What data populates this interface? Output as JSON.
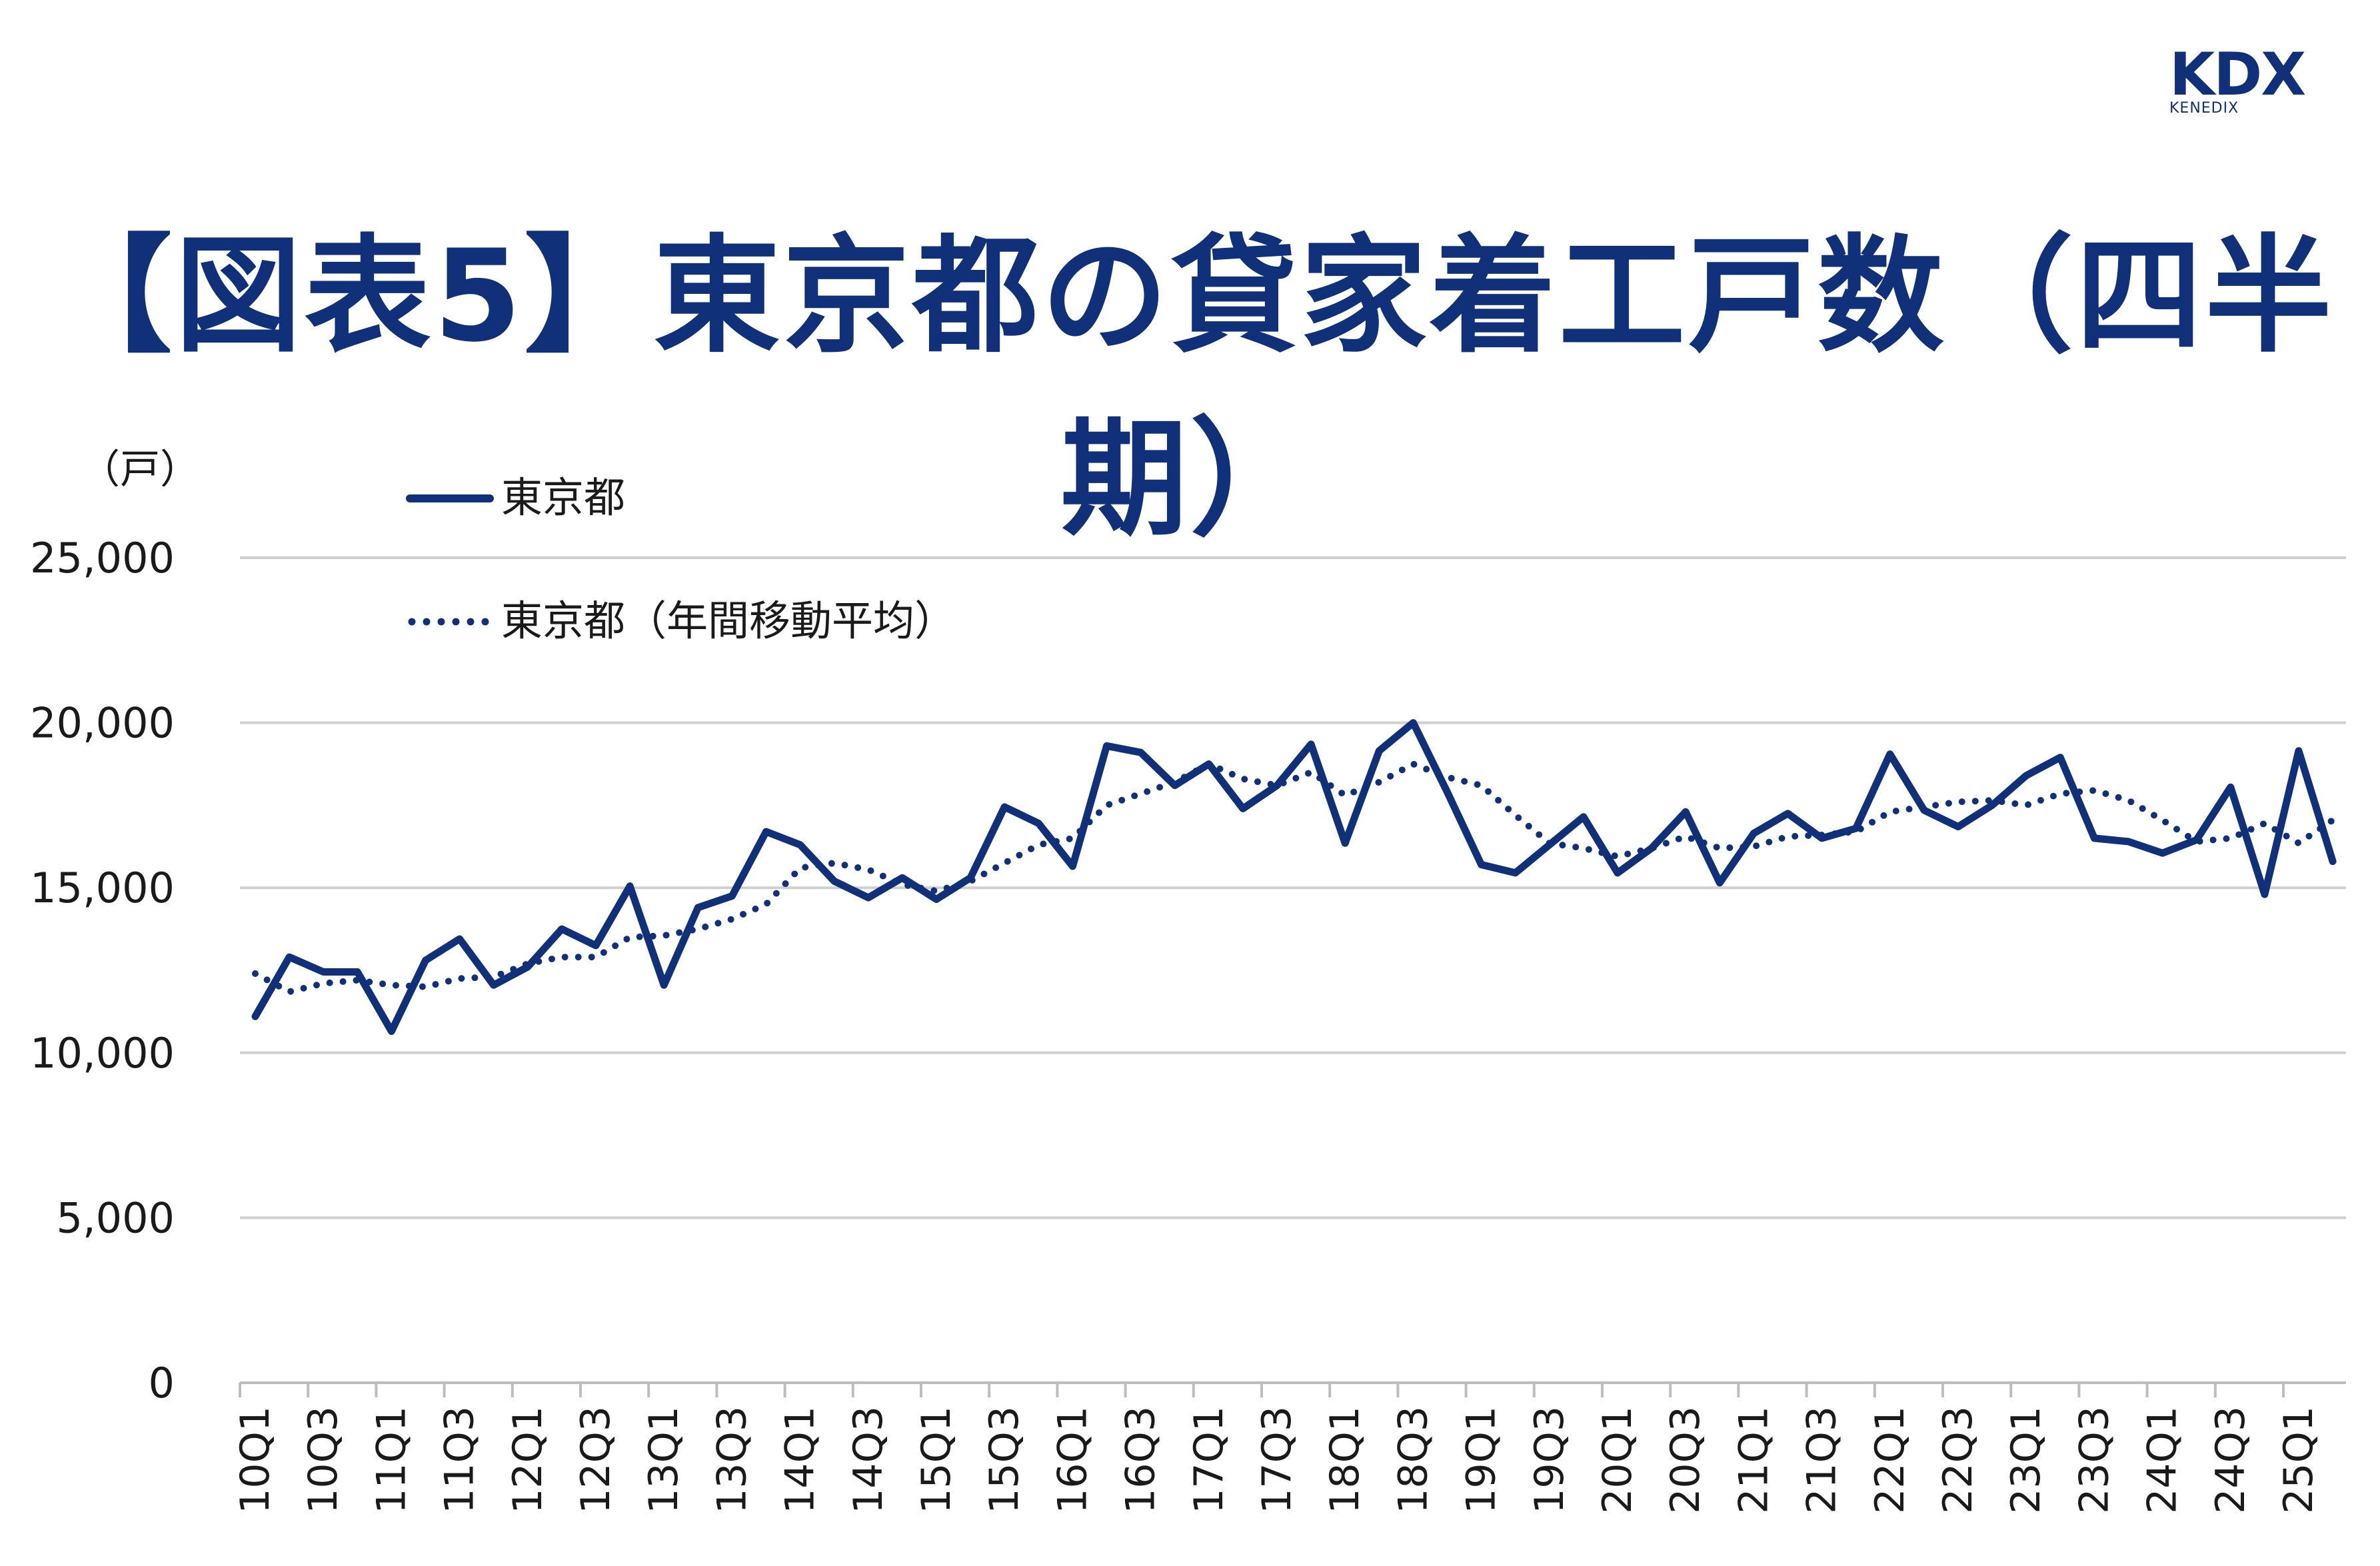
{
  "header": {
    "title": "【図表5】東京都の貸家着工戸数（四半期）",
    "logo_text": "KDX",
    "logo_subtext": "KENEDIX"
  },
  "colors": {
    "series": "#11307a",
    "grid": "#cfcfcf",
    "title": "#11307a"
  },
  "chart_data": {
    "type": "line",
    "title": "【図表5】東京都の貸家着工戸数（四半期）",
    "ylabel": "（戸）",
    "ylim": [
      0,
      25000
    ],
    "yticks": [
      0,
      5000,
      10000,
      15000,
      20000,
      25000
    ],
    "ytick_labels": [
      "0",
      "5,000",
      "10,000",
      "15,000",
      "20,000",
      "25,000"
    ],
    "grid": true,
    "legend_position": "top-left",
    "x": [
      "10Q1",
      "10Q2",
      "10Q3",
      "10Q4",
      "11Q1",
      "11Q2",
      "11Q3",
      "11Q4",
      "12Q1",
      "12Q2",
      "12Q3",
      "12Q4",
      "13Q1",
      "13Q2",
      "13Q3",
      "13Q4",
      "14Q1",
      "14Q2",
      "14Q3",
      "14Q4",
      "15Q1",
      "15Q2",
      "15Q3",
      "15Q4",
      "16Q1",
      "16Q2",
      "16Q3",
      "16Q4",
      "17Q1",
      "17Q2",
      "17Q3",
      "17Q4",
      "18Q1",
      "18Q2",
      "18Q3",
      "18Q4",
      "19Q1",
      "19Q2",
      "19Q3",
      "19Q4",
      "20Q1",
      "20Q2",
      "20Q3",
      "20Q4",
      "21Q1",
      "21Q2",
      "21Q3",
      "21Q4",
      "22Q1",
      "22Q2",
      "22Q3",
      "22Q4",
      "23Q1",
      "23Q2",
      "23Q3",
      "23Q4",
      "24Q1",
      "24Q2",
      "24Q3",
      "24Q4",
      "25Q1",
      "25Q2"
    ],
    "x_tick_labels": [
      "10Q1",
      "10Q3",
      "11Q1",
      "11Q3",
      "12Q1",
      "12Q3",
      "13Q1",
      "13Q3",
      "14Q1",
      "14Q3",
      "15Q1",
      "15Q3",
      "16Q1",
      "16Q3",
      "17Q1",
      "17Q3",
      "18Q1",
      "18Q3",
      "19Q1",
      "19Q3",
      "20Q1",
      "20Q3",
      "21Q1",
      "21Q3",
      "22Q1",
      "22Q3",
      "23Q1",
      "23Q3",
      "24Q1",
      "24Q3",
      "25Q1"
    ],
    "series": [
      {
        "name": "東京都",
        "style": "solid",
        "values": [
          11100,
          12900,
          12450,
          12450,
          10650,
          12800,
          13450,
          12050,
          12600,
          13750,
          13250,
          15050,
          12050,
          14400,
          14750,
          16700,
          16300,
          15200,
          14700,
          15300,
          14650,
          15300,
          17450,
          16950,
          15650,
          19300,
          19100,
          18100,
          18750,
          17400,
          18100,
          19350,
          16350,
          19150,
          20000,
          17900,
          15700,
          15450,
          16300,
          17150,
          15450,
          16200,
          17300,
          15150,
          16650,
          17250,
          16500,
          16800,
          19050,
          17350,
          16850,
          17500,
          18400,
          18950,
          16500,
          16400,
          16050,
          16450,
          18050,
          14800,
          19150,
          15800
        ]
      },
      {
        "name": "東京都（年間移動平均）",
        "style": "dotted",
        "values": [
          12400,
          11850,
          12100,
          12200,
          12050,
          12000,
          12250,
          12300,
          12700,
          12900,
          12900,
          13500,
          13550,
          13750,
          14050,
          14500,
          15600,
          15750,
          15550,
          15100,
          14900,
          15200,
          15750,
          16300,
          16500,
          17500,
          17850,
          18200,
          18750,
          18300,
          18100,
          18500,
          17800,
          18200,
          18750,
          18350,
          18100,
          17200,
          16350,
          16200,
          15950,
          16200,
          16550,
          16200,
          16250,
          16550,
          16600,
          16700,
          17300,
          17450,
          17600,
          17650,
          17500,
          17850,
          17950,
          17650,
          17050,
          16400,
          16500,
          16950,
          16350,
          17050
        ]
      }
    ]
  }
}
